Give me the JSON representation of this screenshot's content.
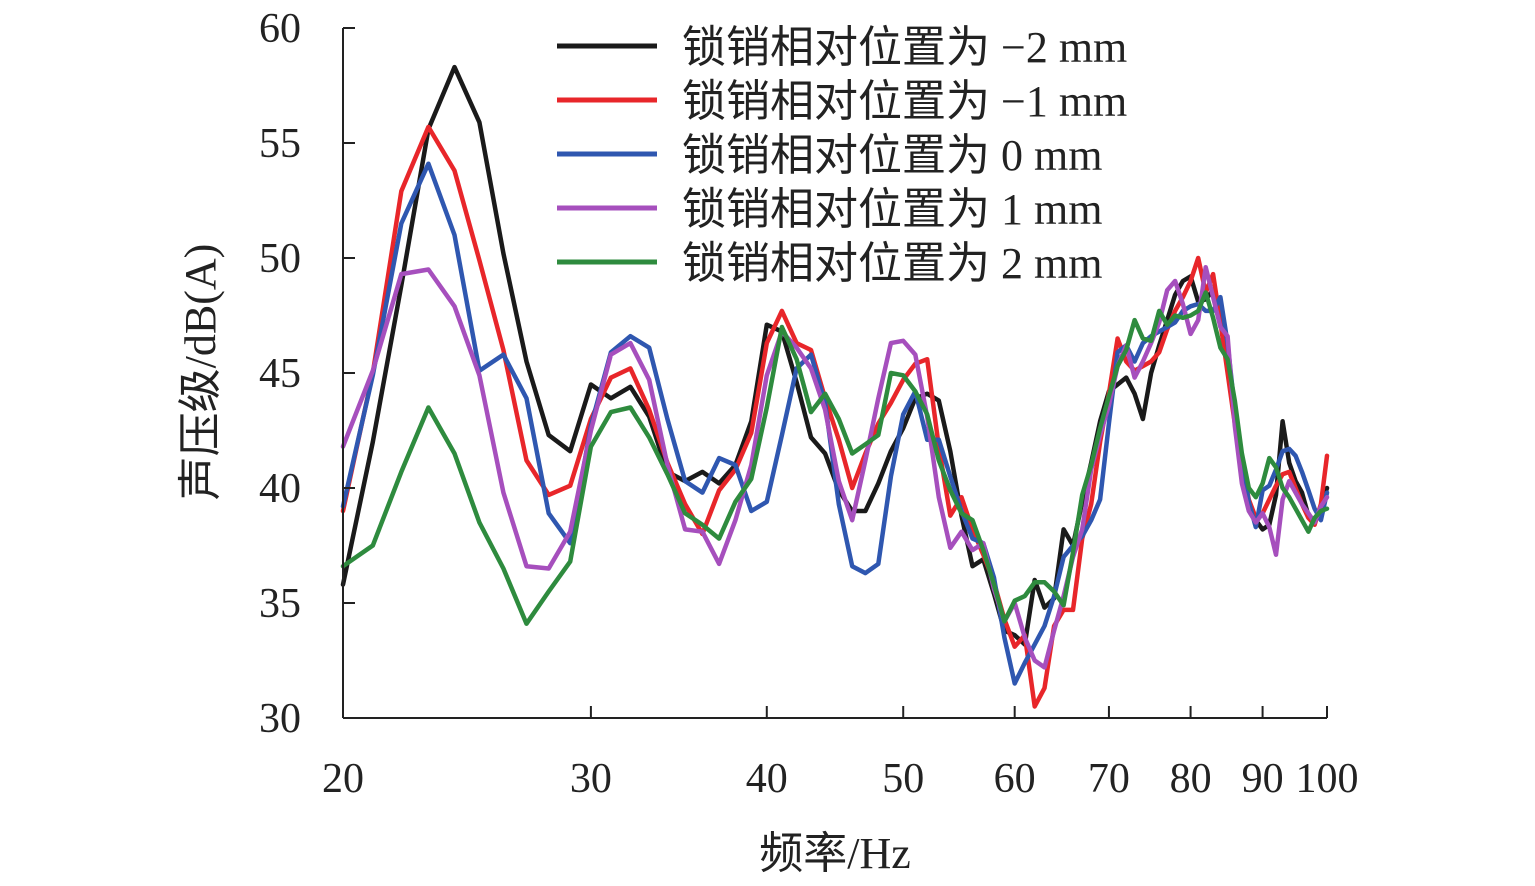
{
  "chart_data": {
    "type": "line",
    "title": "",
    "xlabel": "频率/Hz",
    "ylabel": "声压级/dB(A)",
    "x_scale": "log",
    "xlim": [
      20,
      100
    ],
    "ylim": [
      30,
      60
    ],
    "x_ticks": [
      20,
      30,
      40,
      50,
      60,
      70,
      80,
      90,
      100
    ],
    "y_ticks": [
      30,
      35,
      40,
      45,
      50,
      55,
      60
    ],
    "x_tick_labels": [
      "20",
      "30",
      "40",
      "50",
      "60",
      "70",
      "80",
      "90",
      "100"
    ],
    "y_tick_labels": [
      "30",
      "35",
      "40",
      "45",
      "50",
      "55",
      "60"
    ],
    "grid": false,
    "legend_position": "top-right",
    "series": [
      {
        "name": "锁销相对位置为 −2 mm",
        "color": "#1a1a1a",
        "x": [
          20,
          21,
          22,
          23,
          24,
          25,
          26,
          27,
          28,
          29,
          30,
          31,
          32,
          33,
          34,
          35,
          36,
          37,
          38,
          39,
          40,
          41,
          42,
          43,
          44,
          45,
          46,
          47,
          48,
          49,
          50,
          51,
          52,
          53,
          54,
          55,
          56,
          57,
          58,
          59,
          60,
          61,
          62,
          63,
          64,
          65,
          66,
          67,
          68,
          69,
          70,
          71,
          72,
          73,
          74,
          75,
          76,
          77,
          78,
          79,
          80,
          81,
          82,
          83,
          84,
          85,
          86,
          87,
          88,
          89,
          90,
          91,
          92,
          93,
          94,
          95,
          96,
          97,
          98,
          99,
          100
        ],
        "y": [
          35.8,
          42.0,
          48.8,
          55.6,
          58.3,
          55.9,
          50.2,
          45.5,
          42.3,
          41.6,
          44.5,
          43.9,
          44.4,
          43.1,
          40.7,
          40.3,
          40.7,
          40.2,
          41.0,
          42.9,
          47.1,
          46.8,
          44.6,
          42.2,
          41.5,
          39.9,
          39.0,
          39.0,
          40.2,
          41.6,
          42.6,
          43.9,
          44.1,
          43.8,
          41.6,
          38.8,
          36.6,
          36.9,
          35.4,
          33.8,
          33.6,
          33.2,
          36.0,
          34.8,
          35.2,
          38.2,
          37.5,
          39.4,
          41.1,
          42.9,
          44.2,
          44.5,
          44.8,
          44.1,
          43.0,
          45.0,
          46.2,
          47.3,
          48.4,
          49.0,
          49.2,
          48.1,
          48.2,
          48.6,
          47.3,
          46.1,
          43.0,
          40.9,
          39.4,
          38.6,
          38.2,
          38.4,
          39.7,
          42.9,
          41.1,
          40.3,
          39.8,
          38.8,
          38.6,
          39.2,
          40.0
        ]
      },
      {
        "name": "锁销相对位置为 −1 mm",
        "color": "#e8262a",
        "x": [
          20,
          21,
          22,
          23,
          24,
          25,
          26,
          27,
          28,
          29,
          30,
          31,
          32,
          33,
          34,
          35,
          36,
          37,
          38,
          39,
          40,
          41,
          42,
          43,
          44,
          45,
          46,
          47,
          48,
          49,
          50,
          51,
          52,
          53,
          54,
          55,
          56,
          57,
          58,
          59,
          60,
          61,
          62,
          63,
          64,
          65,
          66,
          67,
          68,
          69,
          70,
          71,
          72,
          73,
          74,
          75,
          76,
          77,
          78,
          79,
          80,
          81,
          82,
          83,
          84,
          85,
          86,
          87,
          88,
          89,
          90,
          91,
          92,
          93,
          94,
          95,
          96,
          97,
          98,
          99,
          100
        ],
        "y": [
          39.0,
          45.0,
          52.9,
          55.7,
          53.8,
          49.9,
          46.0,
          41.2,
          39.7,
          40.1,
          43.0,
          44.8,
          45.2,
          43.4,
          41.1,
          39.3,
          38.0,
          39.9,
          40.8,
          42.4,
          46.3,
          47.7,
          46.3,
          46.0,
          43.9,
          42.1,
          40.0,
          41.5,
          42.8,
          43.7,
          44.7,
          45.4,
          45.6,
          41.8,
          38.8,
          39.6,
          38.2,
          37.1,
          35.9,
          34.3,
          33.1,
          33.6,
          30.5,
          31.3,
          34.0,
          34.7,
          34.7,
          37.8,
          39.3,
          42.0,
          44.1,
          46.5,
          45.5,
          45.1,
          45.3,
          45.5,
          45.9,
          46.9,
          47.7,
          48.3,
          49.0,
          50.0,
          48.5,
          49.3,
          47.2,
          45.0,
          42.8,
          41.0,
          39.5,
          38.7,
          38.9,
          39.5,
          40.1,
          40.6,
          40.7,
          40.0,
          39.3,
          38.7,
          38.4,
          39.3,
          41.4
        ]
      },
      {
        "name": "锁销相对位置为 0 mm",
        "color": "#2f57b0",
        "x": [
          20,
          21,
          22,
          23,
          24,
          25,
          26,
          27,
          28,
          29,
          30,
          31,
          32,
          33,
          34,
          35,
          36,
          37,
          38,
          39,
          40,
          41,
          42,
          43,
          44,
          45,
          46,
          47,
          48,
          49,
          50,
          51,
          52,
          53,
          54,
          55,
          56,
          57,
          58,
          59,
          60,
          61,
          62,
          63,
          64,
          65,
          66,
          67,
          68,
          69,
          70,
          71,
          72,
          73,
          74,
          75,
          76,
          77,
          78,
          79,
          80,
          81,
          82,
          83,
          84,
          85,
          86,
          87,
          88,
          89,
          90,
          91,
          92,
          93,
          94,
          95,
          96,
          97,
          98,
          99,
          100
        ],
        "y": [
          39.2,
          44.9,
          51.5,
          54.1,
          51.0,
          45.1,
          45.8,
          43.9,
          38.9,
          37.6,
          42.7,
          45.9,
          46.6,
          46.1,
          43.0,
          40.3,
          39.8,
          41.3,
          41.0,
          39.0,
          39.4,
          42.3,
          45.2,
          45.8,
          43.7,
          39.3,
          36.6,
          36.3,
          36.7,
          40.5,
          43.2,
          44.2,
          42.1,
          42.1,
          40.5,
          39.0,
          37.8,
          37.6,
          36.1,
          33.5,
          31.5,
          32.4,
          33.2,
          34.0,
          35.3,
          37.0,
          37.5,
          37.9,
          38.6,
          39.5,
          42.8,
          45.9,
          46.2,
          45.5,
          46.3,
          46.6,
          46.8,
          47.0,
          47.2,
          47.7,
          47.9,
          48.0,
          47.7,
          47.7,
          48.3,
          46.3,
          43.4,
          41.3,
          39.4,
          38.3,
          39.9,
          40.1,
          40.8,
          41.6,
          41.7,
          41.4,
          40.7,
          39.9,
          39.1,
          38.6,
          39.8
        ]
      },
      {
        "name": "锁销相对位置为 1 mm",
        "color": "#a64fbd",
        "x": [
          20,
          21,
          22,
          23,
          24,
          25,
          26,
          27,
          28,
          29,
          30,
          31,
          32,
          33,
          34,
          35,
          36,
          37,
          38,
          39,
          40,
          41,
          42,
          43,
          44,
          45,
          46,
          47,
          48,
          49,
          50,
          51,
          52,
          53,
          54,
          55,
          56,
          57,
          58,
          59,
          60,
          61,
          62,
          63,
          64,
          65,
          66,
          67,
          68,
          69,
          70,
          71,
          72,
          73,
          74,
          75,
          76,
          77,
          78,
          79,
          80,
          81,
          82,
          83,
          84,
          85,
          86,
          87,
          88,
          89,
          90,
          91,
          92,
          93,
          94,
          95,
          96,
          97,
          98,
          99,
          100
        ],
        "y": [
          41.8,
          45.1,
          49.3,
          49.5,
          47.9,
          44.9,
          39.8,
          36.6,
          36.5,
          38.1,
          42.5,
          45.8,
          46.3,
          44.7,
          41.0,
          38.2,
          38.1,
          36.7,
          38.6,
          41.0,
          44.9,
          46.8,
          46.1,
          45.2,
          43.4,
          40.3,
          38.6,
          41.2,
          43.9,
          46.3,
          46.4,
          45.8,
          43.1,
          39.6,
          37.4,
          38.1,
          37.3,
          37.6,
          35.6,
          34.2,
          35.0,
          33.5,
          32.5,
          32.2,
          33.8,
          35.3,
          37.0,
          38.2,
          40.8,
          42.3,
          43.6,
          45.3,
          46.2,
          44.8,
          45.5,
          46.3,
          47.2,
          48.6,
          49.0,
          48.0,
          46.7,
          47.3,
          49.6,
          48.3,
          47.0,
          46.6,
          42.7,
          40.2,
          39.0,
          38.5,
          38.9,
          38.3,
          37.1,
          39.5,
          40.3,
          39.8,
          39.3,
          38.9,
          38.5,
          39.2,
          39.6
        ]
      },
      {
        "name": "锁销相对位置为 2 mm",
        "color": "#2e8b3e",
        "x": [
          20,
          21,
          22,
          23,
          24,
          25,
          26,
          27,
          28,
          29,
          30,
          31,
          32,
          33,
          34,
          35,
          36,
          37,
          38,
          39,
          40,
          41,
          42,
          43,
          44,
          45,
          46,
          47,
          48,
          49,
          50,
          51,
          52,
          53,
          54,
          55,
          56,
          57,
          58,
          59,
          60,
          61,
          62,
          63,
          64,
          65,
          66,
          67,
          68,
          69,
          70,
          71,
          72,
          73,
          74,
          75,
          76,
          77,
          78,
          79,
          80,
          81,
          82,
          83,
          84,
          85,
          86,
          87,
          88,
          89,
          90,
          91,
          92,
          93,
          94,
          95,
          96,
          97,
          98,
          99,
          100
        ],
        "y": [
          36.6,
          37.5,
          40.7,
          43.5,
          41.5,
          38.5,
          36.5,
          34.1,
          35.5,
          36.8,
          41.8,
          43.3,
          43.5,
          42.2,
          40.6,
          38.9,
          38.4,
          37.8,
          39.4,
          40.4,
          43.5,
          47.0,
          45.6,
          43.3,
          44.1,
          43.0,
          41.5,
          41.9,
          42.3,
          45.0,
          44.9,
          44.2,
          43.2,
          41.2,
          39.9,
          38.9,
          38.6,
          37.3,
          35.8,
          34.2,
          35.1,
          35.3,
          35.9,
          35.9,
          35.5,
          34.9,
          37.2,
          39.7,
          41.0,
          42.6,
          44.0,
          45.3,
          46.0,
          47.3,
          46.5,
          46.4,
          47.7,
          47.1,
          47.5,
          47.4,
          47.5,
          47.7,
          48.5,
          47.4,
          46.1,
          45.6,
          43.8,
          41.5,
          40.0,
          39.6,
          40.2,
          41.3,
          40.9,
          40.0,
          39.6,
          39.1,
          38.6,
          38.1,
          38.7,
          39.0,
          39.1
        ]
      }
    ]
  }
}
